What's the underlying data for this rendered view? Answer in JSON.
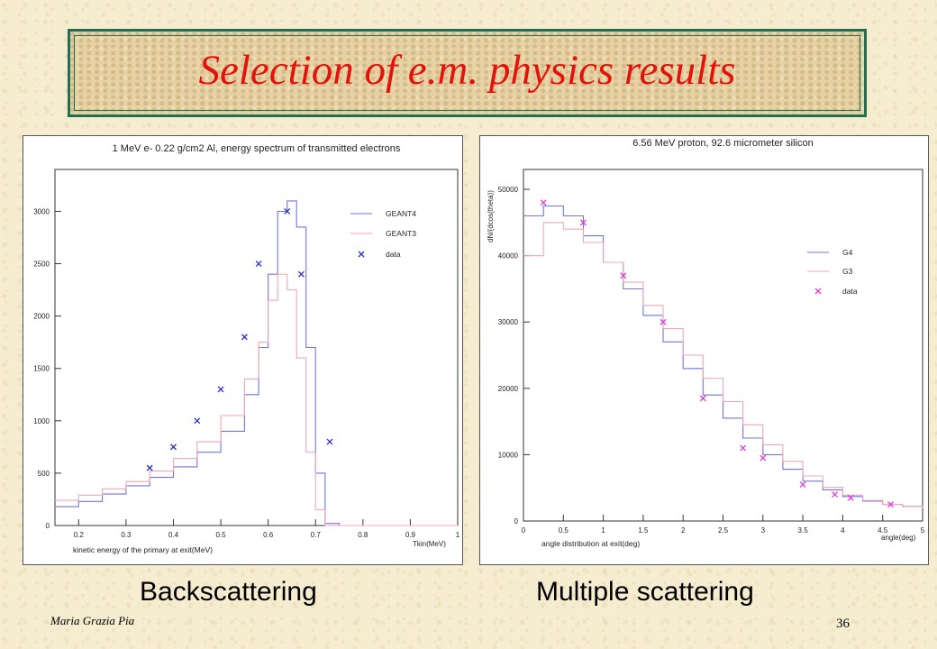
{
  "slide": {
    "title": "Selection of e.m. physics results",
    "left_caption": "Backscattering",
    "right_caption": "Multiple scattering",
    "author": "Maria Grazia Pia",
    "page_number": "36",
    "title_color": "#e3120b",
    "frame_color": "#1f6f52"
  },
  "chart_data": [
    {
      "type": "line",
      "title": "1 MeV e- 0.22 g/cm2 Al, energy spectrum of transmitted electrons",
      "xlabel": "kinetic energy of the primary at exit(MeV)",
      "xaxis_tag": "Tkin(MeV)",
      "ylabel": "",
      "xlim": [
        0.15,
        1.0
      ],
      "ylim": [
        0,
        3400
      ],
      "xticks": [
        "0.2",
        "0.3",
        "0.4",
        "0.5",
        "0.6",
        "0.7",
        "0.8",
        "0.9",
        "1"
      ],
      "yticks": [
        "0",
        "500",
        "1000",
        "1500",
        "2000",
        "2500",
        "3000"
      ],
      "series": [
        {
          "name": "GEANT4",
          "kind": "histogram",
          "color": "#6f74e6",
          "x": [
            0.15,
            0.2,
            0.25,
            0.3,
            0.35,
            0.4,
            0.45,
            0.5,
            0.55,
            0.58,
            0.6,
            0.62,
            0.64,
            0.66,
            0.68,
            0.7,
            0.72,
            0.75,
            0.8,
            0.9,
            1.0
          ],
          "y": [
            180,
            230,
            300,
            380,
            460,
            560,
            700,
            900,
            1250,
            1700,
            2400,
            3000,
            3100,
            2850,
            1700,
            500,
            20,
            0,
            0,
            0,
            0
          ]
        },
        {
          "name": "GEANT3",
          "kind": "histogram",
          "color": "#f0a8b4",
          "x": [
            0.15,
            0.2,
            0.25,
            0.3,
            0.35,
            0.4,
            0.45,
            0.5,
            0.55,
            0.58,
            0.6,
            0.62,
            0.64,
            0.66,
            0.68,
            0.7,
            0.72,
            0.75,
            0.8,
            0.9,
            1.0
          ],
          "y": [
            240,
            290,
            350,
            420,
            520,
            640,
            800,
            1050,
            1400,
            1750,
            2150,
            2400,
            2250,
            1600,
            700,
            150,
            0,
            0,
            0,
            0,
            0
          ]
        },
        {
          "name": "data",
          "kind": "points",
          "color": "#2630c8",
          "x": [
            0.35,
            0.4,
            0.45,
            0.5,
            0.55,
            0.58,
            0.64,
            0.67,
            0.73
          ],
          "y": [
            550,
            750,
            1000,
            1300,
            1800,
            2500,
            3000,
            2400,
            800
          ]
        }
      ],
      "legend_position": "top-right"
    },
    {
      "type": "line",
      "title": "6.56 MeV proton, 92.6 micrometer silicon",
      "xlabel": "angle distribution at exit(deg)",
      "xaxis_tag": "angle(deg)",
      "ylabel": "dN/(dcos(theta))",
      "xlim": [
        0,
        5
      ],
      "ylim": [
        0,
        53000
      ],
      "xticks": [
        "0",
        "0.5",
        "1",
        "1.5",
        "2",
        "2.5",
        "3",
        "3.5",
        "4",
        "4.5",
        "5"
      ],
      "yticks": [
        "0",
        "10000",
        "20000",
        "30000",
        "40000",
        "50000"
      ],
      "series": [
        {
          "name": "G4",
          "kind": "histogram",
          "color": "#6f74e6",
          "x": [
            0,
            0.25,
            0.5,
            0.75,
            1.0,
            1.25,
            1.5,
            1.75,
            2.0,
            2.25,
            2.5,
            2.75,
            3.0,
            3.25,
            3.5,
            3.75,
            4.0,
            4.25,
            4.5,
            4.75,
            5.0
          ],
          "y": [
            46000,
            47500,
            46000,
            43000,
            39000,
            35000,
            31000,
            27000,
            23000,
            19000,
            15500,
            12500,
            10000,
            7800,
            6000,
            4700,
            3700,
            3000,
            2500,
            2200,
            2000
          ]
        },
        {
          "name": "G3",
          "kind": "histogram",
          "color": "#f0a8b4",
          "x": [
            0,
            0.25,
            0.5,
            0.75,
            1.0,
            1.25,
            1.5,
            1.75,
            2.0,
            2.25,
            2.5,
            2.75,
            3.0,
            3.25,
            3.5,
            3.75,
            4.0,
            4.25,
            4.5,
            4.75,
            5.0
          ],
          "y": [
            40000,
            45000,
            44000,
            42000,
            39000,
            36000,
            32500,
            29000,
            25000,
            21500,
            18000,
            14500,
            11500,
            9000,
            6800,
            5100,
            3900,
            3100,
            2500,
            2200,
            2000
          ]
        },
        {
          "name": "data",
          "kind": "points",
          "color": "#e23ad8",
          "x": [
            0.25,
            0.75,
            1.25,
            1.75,
            2.25,
            2.75,
            3.0,
            3.5,
            3.9,
            4.1,
            4.6
          ],
          "y": [
            48000,
            45000,
            37000,
            30000,
            18500,
            11000,
            9500,
            5500,
            4000,
            3500,
            2500
          ]
        }
      ],
      "legend_position": "right"
    }
  ]
}
